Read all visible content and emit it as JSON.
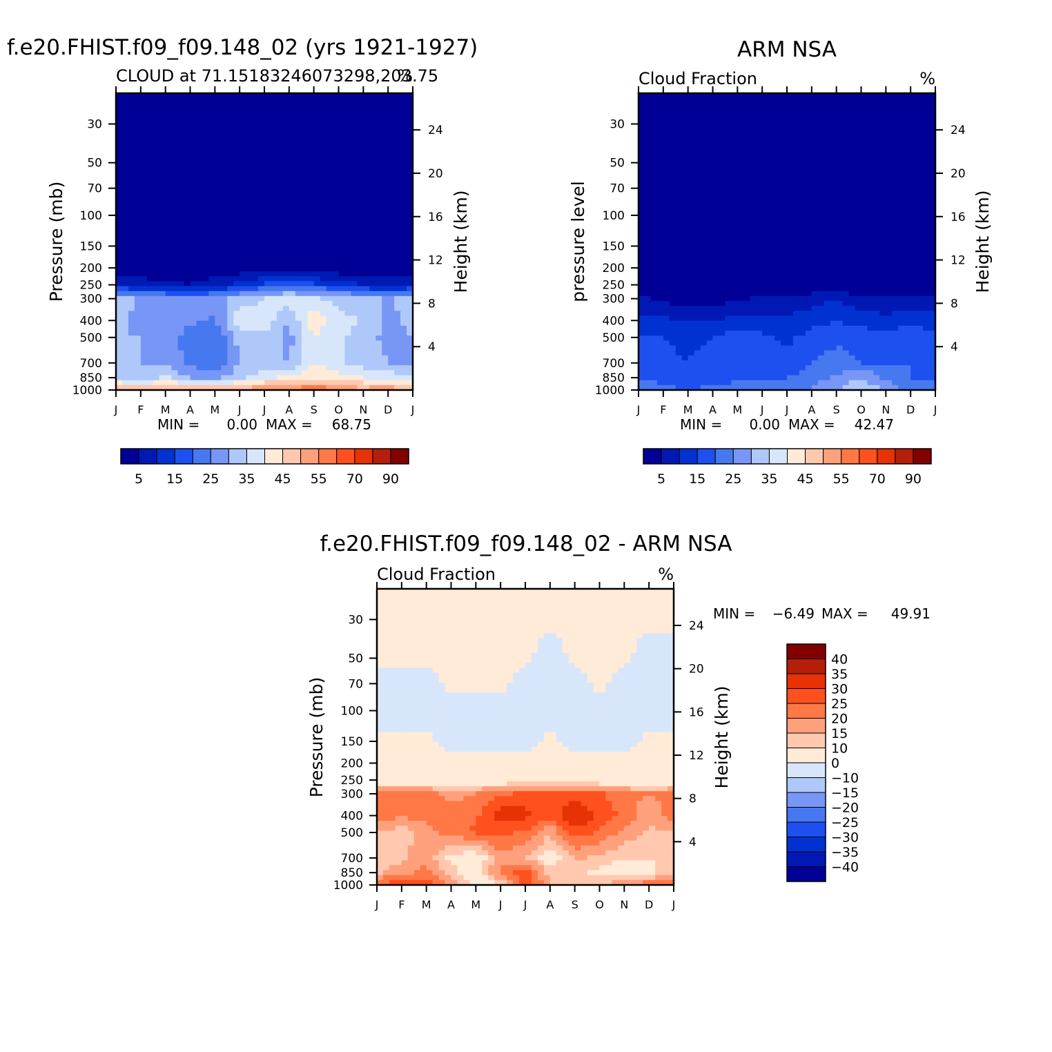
{
  "colors": {
    "cloud_scale": [
      "#000096",
      "#0019b4",
      "#0032d2",
      "#1e50f0",
      "#4678f0",
      "#7896f5",
      "#afc8fa",
      "#d7e6fa",
      "#ffebd7",
      "#ffc8af",
      "#ffa07d",
      "#ff7846",
      "#ff501e",
      "#e63205",
      "#b41e0a",
      "#820000"
    ],
    "diff_scale": [
      "#000096",
      "#0019b4",
      "#0032d2",
      "#1e50f0",
      "#4678f0",
      "#7896f5",
      "#afc8fa",
      "#d7e6fa",
      "#ffebd7",
      "#ffc8af",
      "#ffa07d",
      "#ff7846",
      "#ff501e",
      "#e63205",
      "#b41e0a",
      "#820000"
    ]
  },
  "months": [
    "J",
    "F",
    "M",
    "A",
    "M",
    "J",
    "J",
    "A",
    "S",
    "O",
    "N",
    "D",
    "J"
  ],
  "chart_data": [
    {
      "type": "heatmap",
      "id": "model",
      "title": "f.e20.FHIST.f09_f09.148_02 (yrs 1921-1927)",
      "subtitle": "CLOUD at 71.15183246073298,203.75",
      "units": "%",
      "ylabel": "Pressure (mb)",
      "y2label": "Height (km)",
      "x_ticks": [
        "J",
        "F",
        "M",
        "A",
        "M",
        "J",
        "J",
        "A",
        "S",
        "O",
        "N",
        "D",
        "J"
      ],
      "y_ticks": [
        30,
        50,
        70,
        100,
        150,
        200,
        250,
        300,
        400,
        500,
        700,
        850,
        1000
      ],
      "y2_ticks": [
        24,
        20,
        16,
        12,
        8,
        4
      ],
      "min_label": "MIN =",
      "min_value": "0.00",
      "max_label": "MAX =",
      "max_value": "68.75",
      "colorbar_labels": [
        "5",
        "15",
        "25",
        "35",
        "45",
        "55",
        "70",
        "90"
      ],
      "pressure_levels": [
        30,
        50,
        70,
        100,
        150,
        200,
        250,
        300,
        400,
        500,
        700,
        850,
        1000
      ],
      "values_by_level": [
        [
          0,
          0,
          0,
          0,
          0,
          0,
          0,
          0,
          0,
          0,
          0,
          0,
          0
        ],
        [
          0,
          0,
          0,
          0,
          0,
          0,
          0,
          0,
          0,
          0,
          0,
          0,
          0
        ],
        [
          0,
          0,
          0,
          0,
          0,
          0,
          0,
          0,
          0,
          0,
          0,
          0,
          0
        ],
        [
          0,
          0,
          0,
          0,
          0,
          0,
          0,
          0,
          0,
          0,
          0,
          0,
          0
        ],
        [
          0,
          0,
          0,
          0,
          0,
          0,
          0,
          0,
          0,
          0,
          0,
          0,
          0
        ],
        [
          1,
          1,
          1,
          0.5,
          1,
          1,
          2,
          2,
          2,
          1,
          1,
          1,
          1
        ],
        [
          10,
          8,
          6,
          5,
          8,
          12,
          16,
          18,
          16,
          12,
          10,
          7,
          10
        ],
        [
          32,
          30,
          28,
          26,
          28,
          32,
          35,
          38,
          36,
          34,
          32,
          30,
          32
        ],
        [
          32,
          28,
          30,
          26,
          24,
          40,
          38,
          30,
          44,
          36,
          35,
          28,
          32
        ],
        [
          30,
          30,
          28,
          22,
          20,
          32,
          34,
          28,
          40,
          36,
          33,
          28,
          30
        ],
        [
          30,
          30,
          28,
          24,
          20,
          30,
          32,
          30,
          40,
          36,
          33,
          30,
          30
        ],
        [
          35,
          30,
          36,
          30,
          28,
          34,
          38,
          42,
          44,
          42,
          40,
          38,
          35
        ],
        [
          50,
          50,
          52,
          50,
          50,
          52,
          55,
          55,
          60,
          55,
          52,
          55,
          50
        ]
      ]
    },
    {
      "type": "heatmap",
      "id": "obs",
      "title": "ARM NSA",
      "subtitle": "Cloud Fraction",
      "units": "%",
      "ylabel": "pressure level",
      "y2label": "Height (km)",
      "x_ticks": [
        "J",
        "F",
        "M",
        "A",
        "M",
        "J",
        "J",
        "A",
        "S",
        "O",
        "N",
        "D",
        "J"
      ],
      "y_ticks": [
        30,
        50,
        70,
        100,
        150,
        200,
        250,
        300,
        400,
        500,
        700,
        850,
        1000
      ],
      "y2_ticks": [
        24,
        20,
        16,
        12,
        8,
        4
      ],
      "min_label": "MIN =",
      "min_value": "0.00",
      "max_label": "MAX =",
      "max_value": "42.47",
      "colorbar_labels": [
        "5",
        "15",
        "25",
        "35",
        "45",
        "55",
        "70",
        "90"
      ],
      "pressure_levels": [
        30,
        50,
        70,
        100,
        150,
        200,
        250,
        300,
        400,
        500,
        700,
        850,
        1000
      ],
      "values_by_level": [
        [
          0,
          0,
          0,
          0,
          0,
          0,
          0,
          0,
          0,
          0,
          0,
          0,
          0
        ],
        [
          0,
          0,
          0,
          0,
          0,
          0,
          0,
          0,
          0,
          0,
          0,
          0,
          0
        ],
        [
          0,
          0,
          0,
          0,
          0,
          0,
          0,
          0,
          0,
          0,
          0,
          0,
          0
        ],
        [
          0,
          0,
          0,
          0,
          0,
          0,
          0,
          0,
          0,
          0,
          0,
          0,
          0
        ],
        [
          0,
          0,
          0,
          0,
          0,
          0,
          0,
          0,
          0,
          0,
          0,
          0,
          0
        ],
        [
          0,
          0,
          0,
          0,
          0,
          0,
          0,
          0,
          0,
          0,
          0,
          0,
          0
        ],
        [
          0,
          0,
          0,
          0,
          0,
          0,
          0,
          0,
          1,
          0,
          0,
          0,
          0
        ],
        [
          6,
          4,
          2,
          2,
          4,
          6,
          6,
          8,
          10,
          6,
          5,
          6,
          6
        ],
        [
          12,
          11,
          10,
          10,
          12,
          12,
          11,
          13,
          15,
          13,
          12,
          14,
          12
        ],
        [
          16,
          15,
          14,
          15,
          18,
          16,
          14,
          17,
          19,
          18,
          17,
          18,
          16
        ],
        [
          18,
          16,
          15,
          17,
          20,
          18,
          16,
          20,
          22,
          20,
          20,
          20,
          18
        ],
        [
          20,
          18,
          16,
          17,
          18,
          20,
          20,
          22,
          26,
          30,
          24,
          20,
          20
        ],
        [
          22,
          22,
          20,
          22,
          24,
          22,
          22,
          26,
          30,
          36,
          28,
          24,
          22
        ]
      ]
    },
    {
      "type": "heatmap",
      "id": "diff",
      "title": "f.e20.FHIST.f09_f09.148_02 - ARM NSA",
      "subtitle": "Cloud Fraction",
      "units": "%",
      "ylabel": "Pressure (mb)",
      "y2label": "Height (km)",
      "x_ticks": [
        "J",
        "F",
        "M",
        "A",
        "M",
        "J",
        "J",
        "A",
        "S",
        "O",
        "N",
        "D",
        "J"
      ],
      "y_ticks": [
        30,
        50,
        70,
        100,
        150,
        200,
        250,
        300,
        400,
        500,
        700,
        850,
        1000
      ],
      "y2_ticks": [
        24,
        20,
        16,
        12,
        8,
        4
      ],
      "min_label": "MIN =",
      "min_value": "-6.49",
      "max_label": "MAX =",
      "max_value": "49.91",
      "colorbar_labels": [
        "40",
        "35",
        "30",
        "25",
        "20",
        "15",
        "10",
        "0",
        "-10",
        "-15",
        "-20",
        "-25",
        "-30",
        "-35",
        "-40"
      ],
      "pressure_levels": [
        30,
        50,
        70,
        100,
        150,
        200,
        250,
        300,
        400,
        500,
        700,
        850,
        1000
      ],
      "values_by_level": [
        [
          0.5,
          0.5,
          0.5,
          0.5,
          0.5,
          0.5,
          0.5,
          0.5,
          0.5,
          0.5,
          0.5,
          0.5,
          0.5
        ],
        [
          0.5,
          0.5,
          0.5,
          0.5,
          0.5,
          0.5,
          0.5,
          -1,
          0.5,
          0.5,
          0.5,
          -1,
          -1
        ],
        [
          -1,
          -1,
          -1,
          0.5,
          0.5,
          0.5,
          -1,
          -1,
          -1,
          0.5,
          -1,
          -1,
          -1
        ],
        [
          -1,
          -1,
          -1,
          -1,
          -1,
          -1,
          -1,
          -1,
          -1,
          -1,
          -1,
          -1,
          -1
        ],
        [
          0.5,
          0.5,
          0.5,
          -1,
          -1,
          -1,
          -1,
          0.5,
          -1,
          -1,
          -1,
          0.5,
          0.5
        ],
        [
          1,
          1,
          1,
          1,
          1,
          1,
          1,
          1,
          1,
          1,
          1,
          1,
          1
        ],
        [
          4,
          4,
          4,
          4,
          4,
          4,
          6,
          8,
          6,
          4,
          4,
          4,
          4
        ],
        [
          22,
          22,
          22,
          18,
          20,
          24,
          26,
          26,
          28,
          26,
          22,
          20,
          22
        ],
        [
          24,
          21,
          22,
          22,
          24,
          33,
          32,
          26,
          36,
          28,
          24,
          16,
          24
        ],
        [
          14,
          12,
          18,
          22,
          26,
          26,
          24,
          16,
          28,
          24,
          18,
          14,
          14
        ],
        [
          12,
          14,
          18,
          8,
          5,
          18,
          16,
          6,
          16,
          14,
          11,
          10,
          12
        ],
        [
          14,
          18,
          22,
          12,
          6,
          22,
          28,
          12,
          12,
          8,
          4,
          8,
          14
        ],
        [
          25,
          30,
          30,
          20,
          5,
          10,
          30,
          15,
          15,
          15,
          20,
          24,
          25
        ]
      ]
    }
  ]
}
